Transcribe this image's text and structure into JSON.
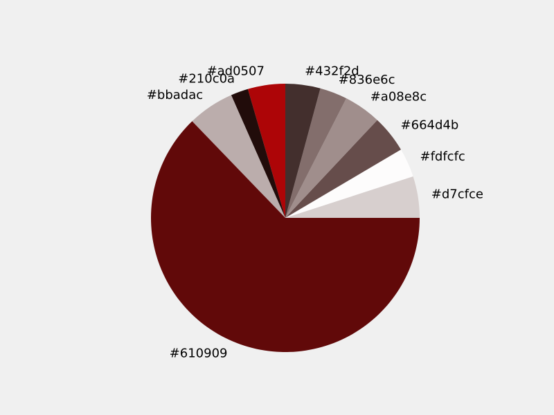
{
  "chart_data": {
    "type": "pie",
    "title": "",
    "start_angle_deg": 0,
    "direction": "counterclockwise",
    "legend": "none",
    "slices": [
      {
        "label": "#d7cfce",
        "value": 5.0,
        "color": "#d7cfce"
      },
      {
        "label": "#fdfcfc",
        "value": 3.5,
        "color": "#fdfcfc"
      },
      {
        "label": "#664d4b",
        "value": 4.5,
        "color": "#664d4b"
      },
      {
        "label": "#a08e8c",
        "value": 4.5,
        "color": "#a08e8c"
      },
      {
        "label": "#836e6c",
        "value": 3.3,
        "color": "#836e6c"
      },
      {
        "label": "#432f2d",
        "value": 4.2,
        "color": "#432f2d"
      },
      {
        "label": "#ad0507",
        "value": 4.5,
        "color": "#ad0507"
      },
      {
        "label": "#210c0a",
        "value": 2.1,
        "color": "#210c0a"
      },
      {
        "label": "#bbadac",
        "value": 5.6,
        "color": "#bbadac"
      },
      {
        "label": "#610909",
        "value": 62.8,
        "color": "#610909"
      }
    ]
  }
}
